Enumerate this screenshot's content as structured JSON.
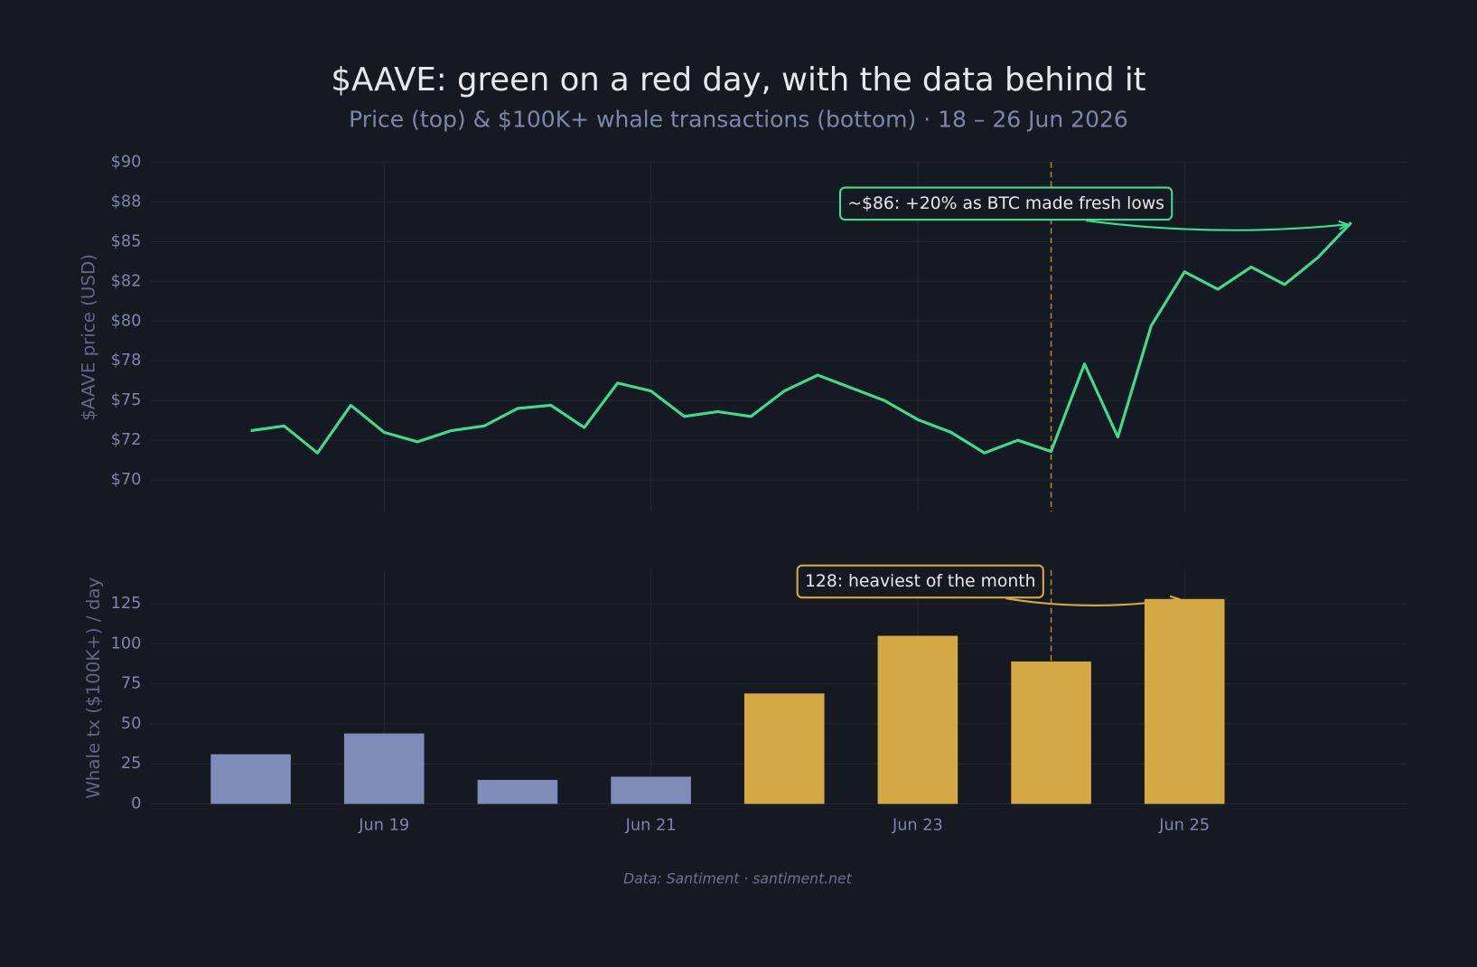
{
  "chart_data": [
    {
      "type": "line",
      "title": "$AAVE: green on a red day, with the data behind it",
      "subtitle": "Price (top) & $100K+ whale transactions (bottom) · 18 – 26 Jun 2026",
      "ylabel": "$AAVE price (USD)",
      "x": [
        18,
        18.25,
        18.5,
        18.75,
        19,
        19.25,
        19.5,
        19.75,
        20,
        20.25,
        20.5,
        20.75,
        21,
        21.25,
        21.5,
        21.75,
        22,
        22.25,
        22.5,
        22.75,
        23,
        23.25,
        23.5,
        23.75,
        24,
        24.25,
        24.5,
        24.75,
        25,
        25.25,
        25.5,
        25.75,
        26,
        26.25
      ],
      "values": [
        73.1,
        73.4,
        71.7,
        74.7,
        73.0,
        72.4,
        73.1,
        73.4,
        74.5,
        74.7,
        73.3,
        76.1,
        75.6,
        74.0,
        74.3,
        74.0,
        75.6,
        76.6,
        75.8,
        75.0,
        73.8,
        73.0,
        71.7,
        72.5,
        71.8,
        77.3,
        72.7,
        79.7,
        83.1,
        82.0,
        83.4,
        82.3,
        84.0,
        86.2
      ],
      "color": "#3ddc8e",
      "xlim": [
        17.25,
        26.67
      ],
      "ylim": [
        68,
        90
      ],
      "yticks": [
        {
          "value": 70,
          "label": "$70"
        },
        {
          "value": 72.5,
          "label": "$72"
        },
        {
          "value": 75,
          "label": "$75"
        },
        {
          "value": 77.5,
          "label": "$78"
        },
        {
          "value": 80,
          "label": "$80"
        },
        {
          "value": 82.5,
          "label": "$82"
        },
        {
          "value": 85,
          "label": "$85"
        },
        {
          "value": 87.5,
          "label": "$88"
        },
        {
          "value": 90,
          "label": "$90"
        }
      ],
      "grid": true,
      "highlight_x": 24,
      "annotation": "~$86: +20% as BTC made fresh lows"
    },
    {
      "type": "bar",
      "ylabel": "Whale tx ($100K+) / day",
      "x": [
        18,
        19,
        20,
        21,
        22,
        23,
        24,
        25
      ],
      "values": [
        31,
        44,
        15,
        17,
        69,
        105,
        89,
        128
      ],
      "colors": [
        "#7f8cba",
        "#7f8cba",
        "#7f8cba",
        "#7f8cba",
        "#d4a843",
        "#d4a843",
        "#d4a843",
        "#d4a843"
      ],
      "xlim": [
        17.25,
        26.67
      ],
      "xticks": [
        {
          "value": 19,
          "label": "Jun 19"
        },
        {
          "value": 21,
          "label": "Jun 21"
        },
        {
          "value": 23,
          "label": "Jun 23"
        },
        {
          "value": 25,
          "label": "Jun 25"
        }
      ],
      "ylim": [
        0,
        146
      ],
      "yticks": [
        0,
        25,
        50,
        75,
        100,
        125
      ],
      "grid": true,
      "highlight_x": 24,
      "annotation": "128: heaviest of the month",
      "source": "Data: Santiment · santiment.net"
    }
  ]
}
